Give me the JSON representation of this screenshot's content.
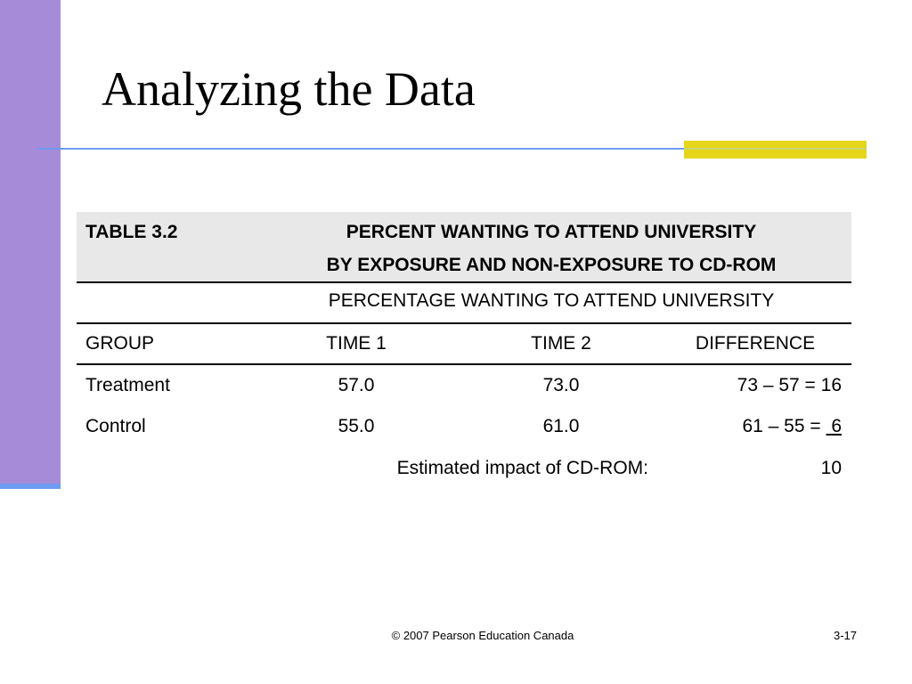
{
  "slide": {
    "title": "Analyzing the Data",
    "footer_copyright": "© 2007 Pearson Education Canada",
    "slide_number": "3-17"
  },
  "colors": {
    "side_bar": "#a68bd9",
    "rule": "#6d9cf0",
    "accent": "#e5d61c",
    "table_header_bg": "#e8e8e8"
  },
  "table": {
    "label": "TABLE 3.2",
    "title_line1": "PERCENT WANTING TO ATTEND UNIVERSITY",
    "title_line2": "BY EXPOSURE AND NON-EXPOSURE TO CD-ROM",
    "subheader": "PERCENTAGE WANTING TO ATTEND UNIVERSITY",
    "columns": [
      "GROUP",
      "TIME 1",
      "TIME 2",
      "DIFFERENCE"
    ],
    "rows": [
      {
        "group": "Treatment",
        "time1": "57.0",
        "time2": "73.0",
        "difference": "73 – 57 = 16"
      },
      {
        "group": "Control",
        "time1": "55.0",
        "time2": "61.0",
        "difference_prefix": "61 – 55 = ",
        "difference_value": "6"
      }
    ],
    "summary_label": "Estimated impact of CD-ROM:",
    "summary_value": "10"
  }
}
